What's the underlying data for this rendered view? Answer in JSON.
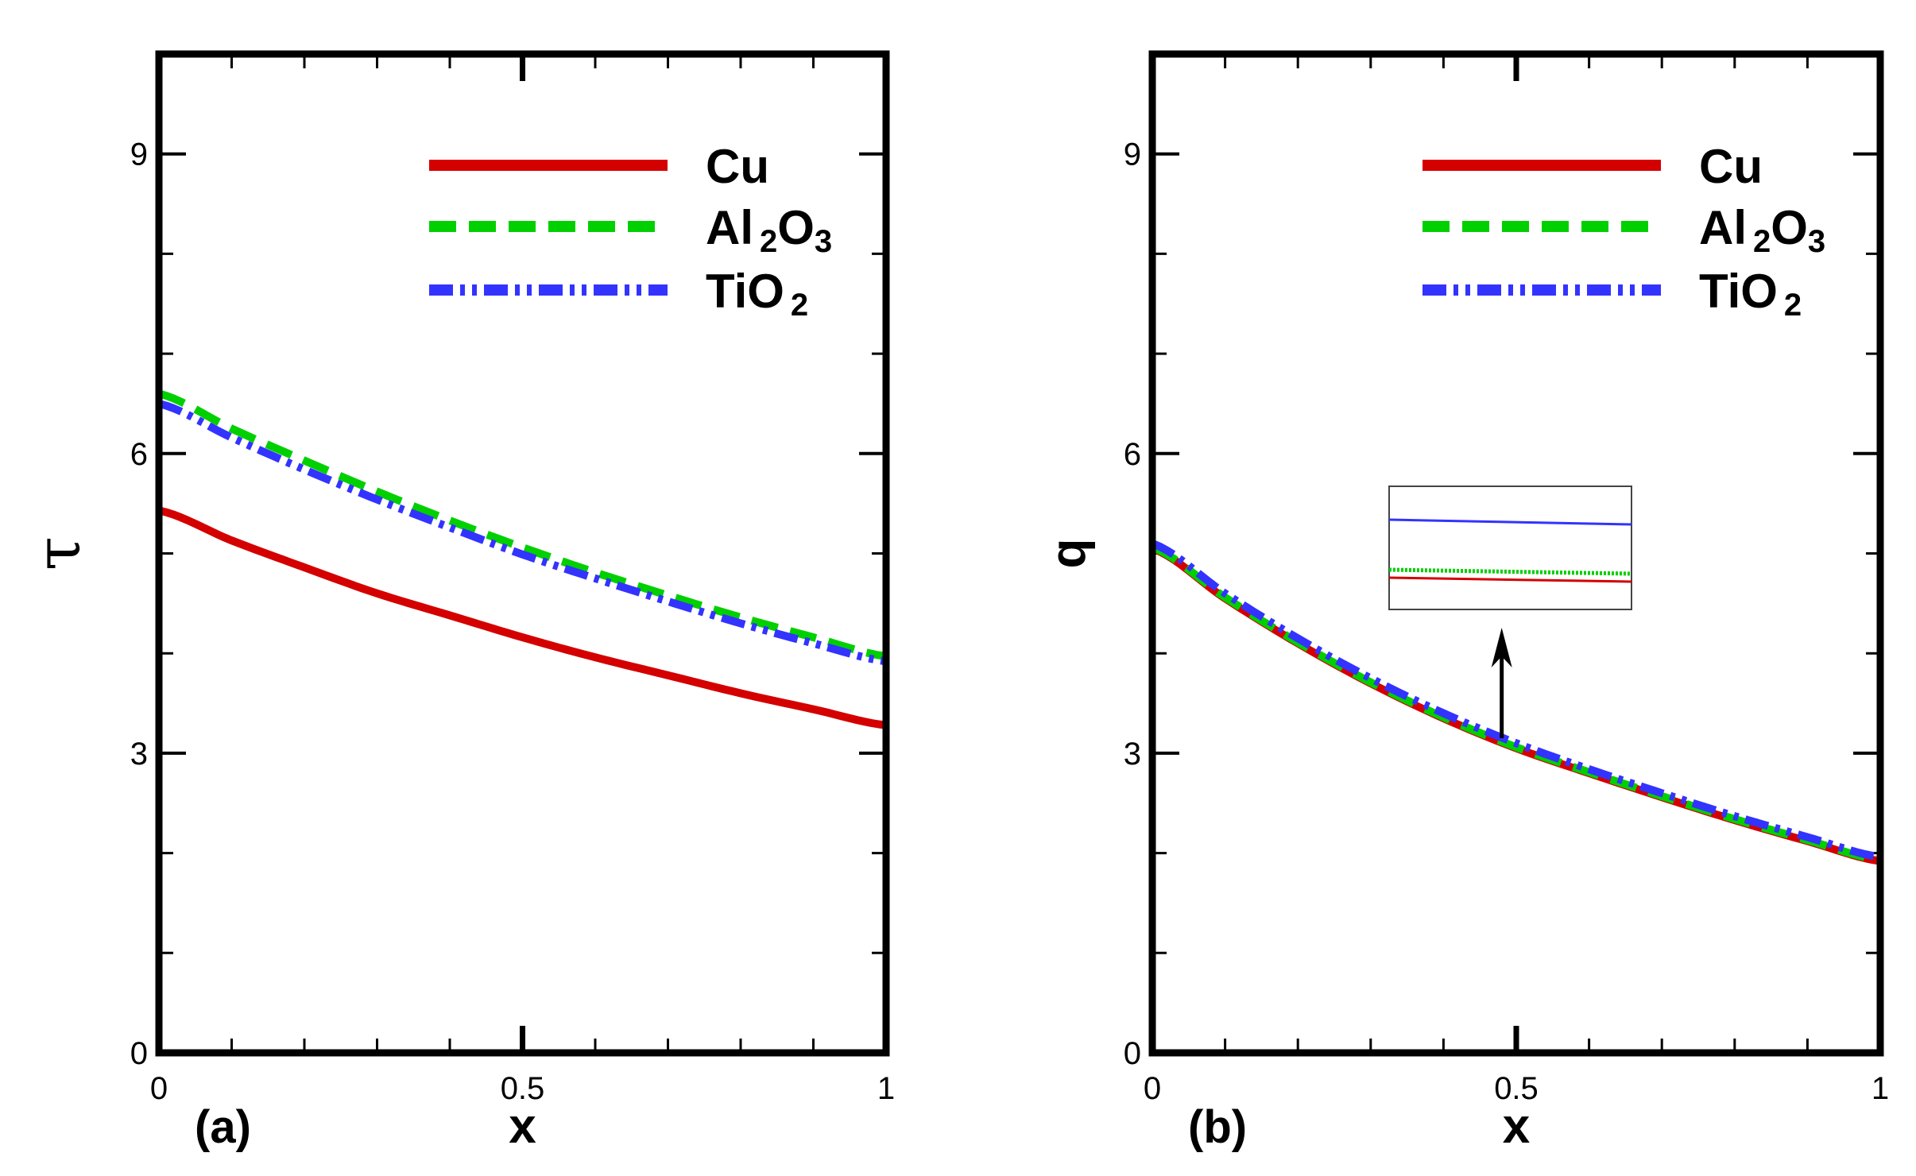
{
  "chart_data": [
    {
      "type": "line",
      "panel_label": "(a)",
      "xlabel": "x",
      "ylabel": "τ",
      "xlim": [
        0,
        1
      ],
      "ylim": [
        0,
        10
      ],
      "x_ticks": [
        0,
        0.5,
        1
      ],
      "x_tick_labels": [
        "0",
        "0.5",
        "1"
      ],
      "y_ticks": [
        0,
        3,
        6,
        9
      ],
      "y_tick_labels": [
        "0",
        "3",
        "6",
        "9"
      ],
      "legend_position": "top-right",
      "x": [
        0,
        0.1,
        0.2,
        0.3,
        0.4,
        0.5,
        0.6,
        0.7,
        0.8,
        0.9,
        1.0
      ],
      "series": [
        {
          "name": "Cu",
          "name_main": "Cu",
          "name_sub": "",
          "name_tail": "",
          "color": "#d40000",
          "style": "solid",
          "values": [
            5.43,
            5.13,
            4.86,
            4.6,
            4.38,
            4.16,
            3.96,
            3.78,
            3.6,
            3.44,
            3.28
          ]
        },
        {
          "name": "Al2O3",
          "name_main": "Al",
          "name_sub": "2",
          "name_tail": "O",
          "name_sub2": "3",
          "color": "#00d000",
          "style": "dashed",
          "values": [
            6.6,
            6.25,
            5.93,
            5.62,
            5.33,
            5.06,
            4.81,
            4.58,
            4.36,
            4.16,
            3.97
          ]
        },
        {
          "name": "TiO2",
          "name_main": "TiO",
          "name_sub": "2",
          "name_tail": "",
          "color": "#3333ff",
          "style": "dash-dot-dot",
          "values": [
            6.5,
            6.16,
            5.84,
            5.54,
            5.26,
            4.99,
            4.75,
            4.52,
            4.3,
            4.1,
            3.92
          ]
        }
      ]
    },
    {
      "type": "line",
      "panel_label": "(b)",
      "xlabel": "x",
      "ylabel": "q",
      "xlim": [
        0,
        1
      ],
      "ylim": [
        0,
        10
      ],
      "x_ticks": [
        0,
        0.5,
        1
      ],
      "x_tick_labels": [
        "0",
        "0.5",
        "1"
      ],
      "y_ticks": [
        0,
        3,
        6,
        9
      ],
      "y_tick_labels": [
        "0",
        "3",
        "6",
        "9"
      ],
      "legend_position": "top-right",
      "annotation": "zoom inset with arrow pointing to curves near x = 0.48",
      "x": [
        0,
        0.1,
        0.2,
        0.3,
        0.4,
        0.5,
        0.6,
        0.7,
        0.8,
        0.9,
        1.0
      ],
      "series": [
        {
          "name": "Cu",
          "name_main": "Cu",
          "name_sub": "",
          "name_tail": "",
          "color": "#d40000",
          "style": "solid",
          "values": [
            5.05,
            4.55,
            4.1,
            3.7,
            3.35,
            3.05,
            2.8,
            2.56,
            2.33,
            2.12,
            1.92
          ]
        },
        {
          "name": "Al2O3",
          "name_main": "Al",
          "name_sub": "2",
          "name_tail": "O",
          "name_sub2": "3",
          "color": "#00d000",
          "style": "dashed",
          "values": [
            5.06,
            4.56,
            4.11,
            3.71,
            3.36,
            3.06,
            2.81,
            2.57,
            2.34,
            2.13,
            1.93
          ]
        },
        {
          "name": "TiO2",
          "name_main": "TiO",
          "name_sub": "2",
          "name_tail": "",
          "color": "#3333ff",
          "style": "dash-dot-dot",
          "values": [
            5.1,
            4.6,
            4.15,
            3.75,
            3.4,
            3.1,
            2.84,
            2.6,
            2.37,
            2.16,
            1.96
          ]
        }
      ]
    }
  ]
}
